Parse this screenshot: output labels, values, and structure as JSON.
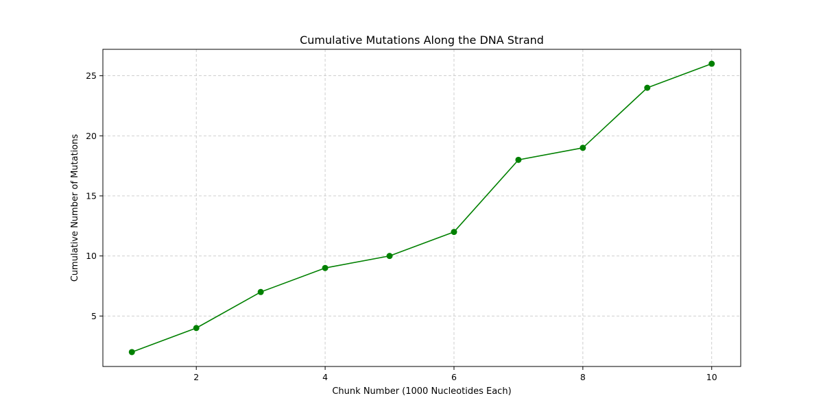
{
  "chart_data": {
    "type": "line",
    "title": "Cumulative Mutations Along the DNA Strand",
    "xlabel": "Chunk Number (1000 Nucleotides Each)",
    "ylabel": "Cumulative Number of Mutations",
    "x": [
      1,
      2,
      3,
      4,
      5,
      6,
      7,
      8,
      9,
      10
    ],
    "series": [
      {
        "values": [
          2,
          4,
          7,
          9,
          10,
          12,
          18,
          19,
          24,
          26
        ],
        "color": "#008000",
        "marker": "circle"
      }
    ],
    "xlim": [
      0.55,
      10.45
    ],
    "ylim": [
      0.8,
      27.2
    ],
    "xticks": [
      2,
      4,
      6,
      8,
      10
    ],
    "yticks": [
      5,
      10,
      15,
      20,
      25
    ],
    "grid": true
  }
}
